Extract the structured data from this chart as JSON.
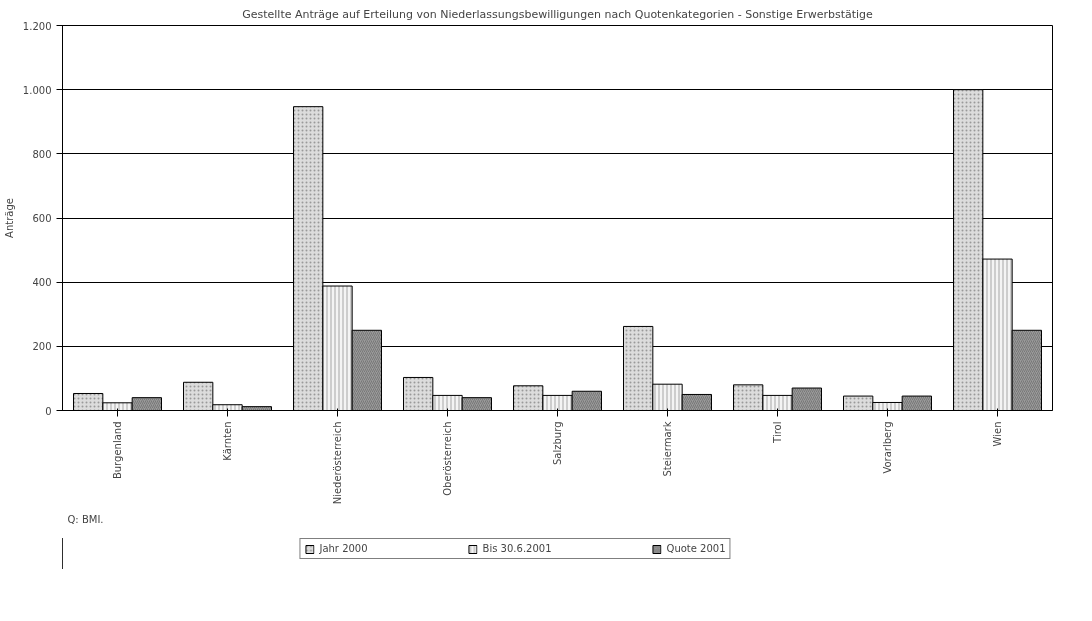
{
  "chart_data": {
    "type": "bar",
    "title": "Gestellte Anträge auf Erteilung von Niederlassungsbewilligungen nach Quotenkategorien - Sonstige Erwerbstätige",
    "ylabel": "Anträge",
    "categories": [
      "Burgenland",
      "Kärnten",
      "Niederösterreich",
      "Oberösterreich",
      "Salzburg",
      "Steiermark",
      "Tirol",
      "Vorarlberg",
      "Wien"
    ],
    "series": [
      {
        "name": "Jahr 2000",
        "color": "#dcdcdc",
        "values": [
          53,
          88,
          947,
          103,
          77,
          262,
          80,
          45,
          1000
        ]
      },
      {
        "name": "Bis 30.6.2001",
        "color": "#f4f4f4",
        "values": [
          24,
          18,
          388,
          47,
          47,
          82,
          47,
          25,
          472
        ]
      },
      {
        "name": "Quote 2001",
        "color": "#9a9a9a",
        "values": [
          40,
          12,
          250,
          40,
          60,
          50,
          70,
          45,
          250
        ]
      }
    ],
    "ylim": [
      0,
      1200
    ],
    "yticks": [
      0,
      200,
      400,
      600,
      800,
      {
        "value": 1000,
        "label": "1.000"
      },
      {
        "value": 1200,
        "label": "1.200"
      }
    ],
    "grid": "y",
    "legend": "bottom",
    "annotations": [
      "Q: BMI."
    ]
  }
}
